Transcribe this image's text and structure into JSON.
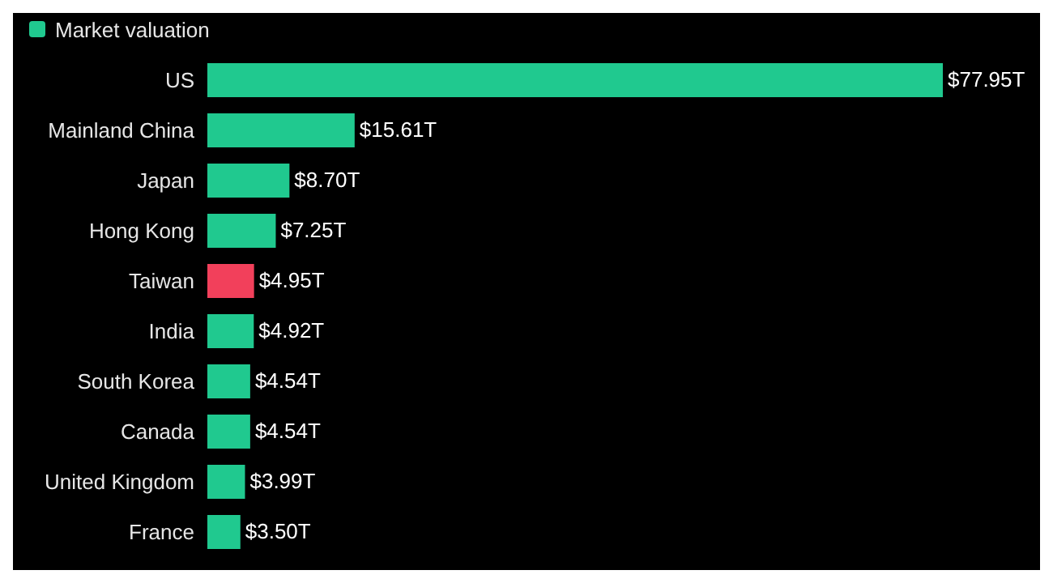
{
  "chart_data": {
    "type": "bar",
    "orientation": "horizontal",
    "categories": [
      "US",
      "Mainland China",
      "Japan",
      "Hong Kong",
      "Taiwan",
      "India",
      "South Korea",
      "Canada",
      "United Kingdom",
      "France"
    ],
    "series": [
      {
        "name": "Market valuation",
        "color": "#20c98f",
        "colors": [
          "#20c98f",
          "#20c98f",
          "#20c98f",
          "#20c98f",
          "#f2405b",
          "#20c98f",
          "#20c98f",
          "#20c98f",
          "#20c98f",
          "#20c98f"
        ],
        "values": [
          77.95,
          15.61,
          8.7,
          7.25,
          4.95,
          4.92,
          4.54,
          4.54,
          3.99,
          3.5
        ],
        "value_labels": [
          "$77.95T",
          "$15.61T",
          "$8.70T",
          "$7.25T",
          "$4.95T",
          "$4.92T",
          "$4.54T",
          "$4.54T",
          "$3.99T",
          "$3.50T"
        ]
      }
    ],
    "legend": "top left",
    "grid": false
  }
}
